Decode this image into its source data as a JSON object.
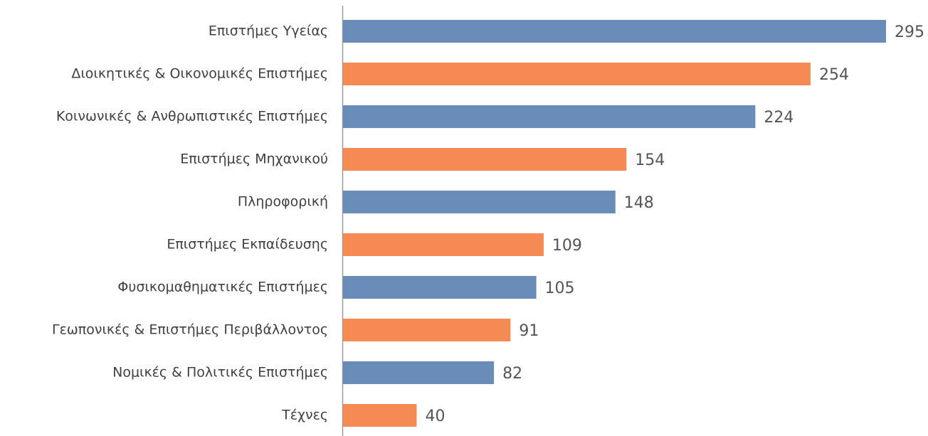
{
  "chart_data": {
    "type": "bar",
    "orientation": "horizontal",
    "categories": [
      "Επιστήμες Υγείας",
      "Διοικητικές & Οικονομικές Επιστήμες",
      "Κοινωνικές & Ανθρωπιστικές Επιστήμες",
      "Επιστήμες Μηχανικού",
      "Πληροφορική",
      "Επιστήμες Εκπαίδευσης",
      "Φυσικομαθηματικές Επιστήμες",
      "Γεωπονικές & Επιστήμες Περιβάλλοντος",
      "Νομικές & Πολιτικές Επιστήμες",
      "Τέχνες"
    ],
    "values": [
      295,
      254,
      224,
      154,
      148,
      109,
      105,
      91,
      82,
      40
    ],
    "colors": [
      "#6a8cb8",
      "#f58a55",
      "#6a8cb8",
      "#f58a55",
      "#6a8cb8",
      "#f58a55",
      "#6a8cb8",
      "#f58a55",
      "#6a8cb8",
      "#f58a55"
    ]
  }
}
